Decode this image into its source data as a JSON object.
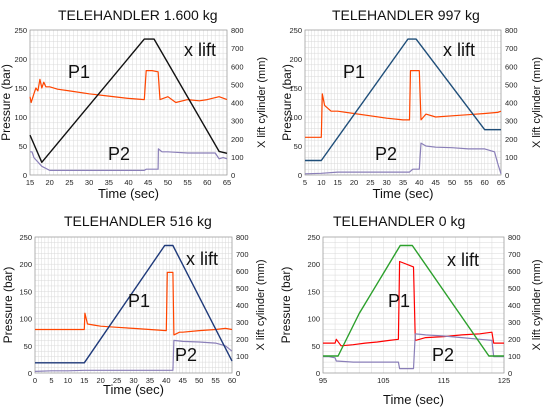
{
  "chart_data": [
    {
      "type": "line",
      "title": "TELEHANDLER 1.600 kg",
      "xlabel": "Time (sec)",
      "ylabel": "Pressure (bar)",
      "y2label": "X lift cylinder (mm)",
      "xlim": [
        15,
        65
      ],
      "ylim": [
        0,
        250
      ],
      "y2lim": [
        0,
        800
      ],
      "xticks": [
        15,
        20,
        25,
        30,
        35,
        40,
        45,
        50,
        55,
        60,
        65
      ],
      "yticks": [
        0,
        50,
        100,
        150,
        200,
        250
      ],
      "y2ticks": [
        0,
        100,
        200,
        300,
        400,
        500,
        600,
        700,
        800
      ],
      "grid": true,
      "annotations": [
        "P1",
        "P2",
        "x lift"
      ],
      "series": [
        {
          "axis": "left",
          "color": "#ff4500",
          "x": [
            15,
            15.3,
            16,
            16.5,
            17,
            17.5,
            18,
            18.5,
            19,
            20,
            22,
            25,
            30,
            35,
            40,
            44,
            44.5,
            46,
            47.5,
            48,
            50,
            52,
            55,
            58,
            60,
            63,
            65
          ],
          "y": [
            135,
            125,
            140,
            150,
            145,
            165,
            150,
            160,
            152,
            152,
            148,
            145,
            140,
            136,
            132,
            130,
            180,
            180,
            178,
            130,
            135,
            125,
            130,
            128,
            130,
            135,
            130
          ]
        },
        {
          "axis": "left",
          "color": "#8a7fb8",
          "x": [
            15,
            15.5,
            16,
            18,
            20,
            25,
            30,
            35,
            40,
            44,
            44.5,
            46,
            47.5,
            47.6,
            48.5,
            50,
            55,
            60,
            62,
            63,
            64,
            65
          ],
          "y": [
            40,
            40,
            30,
            15,
            8,
            8,
            8,
            8,
            8,
            8,
            10,
            10,
            10,
            45,
            40,
            40,
            38,
            38,
            38,
            28,
            30,
            28
          ]
        },
        {
          "axis": "right",
          "color": "#111111",
          "x": [
            15,
            18,
            44,
            46.5,
            63,
            65
          ],
          "y": [
            220,
            70,
            750,
            750,
            130,
            120
          ]
        }
      ]
    },
    {
      "type": "line",
      "title": "TELEHANDLER  997 kg",
      "xlabel": "Time (sec)",
      "ylabel": "Pressure (bar)",
      "y2label": "X lift cylinder (mm)",
      "xlim": [
        5,
        65
      ],
      "ylim": [
        0,
        250
      ],
      "y2lim": [
        0,
        800
      ],
      "xticks": [
        5,
        10,
        15,
        20,
        25,
        30,
        35,
        40,
        45,
        50,
        55,
        60,
        65
      ],
      "yticks": [
        0,
        50,
        100,
        150,
        200,
        250
      ],
      "y2ticks": [
        0,
        100,
        200,
        300,
        400,
        500,
        600,
        700,
        800
      ],
      "grid": true,
      "annotations": [
        "P1",
        "P2",
        "x lift"
      ],
      "series": [
        {
          "axis": "left",
          "color": "#ff4500",
          "x": [
            5,
            10,
            10.3,
            11,
            13,
            15,
            20,
            25,
            30,
            35,
            37,
            37.3,
            40,
            40.5,
            42,
            45,
            50,
            55,
            60,
            64,
            65
          ],
          "y": [
            65,
            65,
            140,
            120,
            110,
            110,
            106,
            102,
            98,
            95,
            95,
            180,
            180,
            95,
            105,
            100,
            102,
            104,
            106,
            108,
            110
          ]
        },
        {
          "axis": "left",
          "color": "#8a7fb8",
          "x": [
            5,
            10,
            15,
            20,
            25,
            30,
            37,
            38,
            40,
            40.5,
            42,
            45,
            50,
            55,
            60,
            63,
            64,
            65
          ],
          "y": [
            2,
            3,
            5,
            5,
            5,
            5,
            5,
            10,
            10,
            55,
            50,
            48,
            47,
            45,
            45,
            40,
            20,
            2
          ]
        },
        {
          "axis": "right",
          "color": "#1f4e79",
          "x": [
            5,
            10,
            36.5,
            39,
            60,
            65
          ],
          "y": [
            80,
            80,
            750,
            750,
            250,
            250
          ]
        }
      ]
    },
    {
      "type": "line",
      "title": "TELEHANDLER    516 kg",
      "xlabel": "Time (sec)",
      "ylabel": "Pressure (bar)",
      "y2label": "X lift cylinder (mm)",
      "xlim": [
        0,
        60
      ],
      "ylim": [
        0,
        250
      ],
      "y2lim": [
        0,
        800
      ],
      "xticks": [
        0,
        5,
        10,
        15,
        20,
        25,
        30,
        35,
        40,
        45,
        50,
        55,
        60
      ],
      "yticks": [
        0,
        50,
        100,
        150,
        200,
        250
      ],
      "y2ticks": [
        0,
        100,
        200,
        300,
        400,
        500,
        600,
        700,
        800
      ],
      "grid": true,
      "annotations": [
        "P1",
        "P2",
        "x lift"
      ],
      "series": [
        {
          "axis": "left",
          "color": "#ff4500",
          "x": [
            0,
            5,
            10,
            15,
            15.2,
            16,
            18,
            20,
            25,
            30,
            35,
            40,
            40.3,
            42,
            42.3,
            44,
            45,
            50,
            55,
            58,
            60
          ],
          "y": [
            80,
            80,
            80,
            80,
            110,
            90,
            88,
            86,
            84,
            82,
            80,
            78,
            185,
            185,
            70,
            75,
            75,
            78,
            80,
            82,
            80
          ]
        },
        {
          "axis": "left",
          "color": "#8a7fb8",
          "x": [
            0,
            5,
            10,
            15,
            20,
            25,
            30,
            35,
            40,
            42,
            42.3,
            45,
            50,
            55,
            58,
            60
          ],
          "y": [
            3,
            4,
            4,
            5,
            5,
            5,
            5,
            5,
            5,
            5,
            60,
            58,
            57,
            55,
            50,
            40
          ]
        },
        {
          "axis": "right",
          "color": "#1f3a7a",
          "x": [
            0,
            5,
            15,
            39.5,
            42,
            60
          ],
          "y": [
            60,
            60,
            60,
            750,
            750,
            70
          ]
        }
      ]
    },
    {
      "type": "line",
      "title": "TELEHANDLER      0 kg",
      "xlabel": "Time (sec)",
      "ylabel": "Pressure (bar)",
      "y2label": "X lift cylinder (mm)",
      "xlim": [
        95,
        125
      ],
      "ylim": [
        0,
        250
      ],
      "y2lim": [
        0,
        800
      ],
      "xticks": [
        95,
        105,
        115,
        125
      ],
      "yticks": [
        0,
        50,
        100,
        150,
        200,
        250
      ],
      "y2ticks": [
        0,
        100,
        200,
        300,
        400,
        500,
        600,
        700,
        800
      ],
      "grid": true,
      "annotations": [
        "P1",
        "P2",
        "x lift"
      ],
      "series": [
        {
          "axis": "left",
          "color": "#ff0000",
          "x": [
            95,
            96,
            97,
            97.2,
            98,
            100,
            102,
            104,
            106,
            107.5,
            107.7,
            110,
            110.3,
            111,
            112,
            115,
            118,
            121,
            123,
            123.3,
            125
          ],
          "y": [
            55,
            55,
            55,
            62,
            50,
            52,
            55,
            57,
            60,
            62,
            205,
            195,
            60,
            62,
            65,
            67,
            70,
            72,
            75,
            55,
            55
          ]
        },
        {
          "axis": "left",
          "color": "#8a7fb8",
          "x": [
            95,
            96,
            97,
            97.2,
            100,
            104,
            107.5,
            107.7,
            110,
            110.3,
            112,
            115,
            118,
            121,
            123,
            123.3,
            125
          ],
          "y": [
            30,
            30,
            28,
            22,
            20,
            20,
            20,
            8,
            8,
            72,
            70,
            68,
            65,
            62,
            60,
            30,
            30
          ]
        },
        {
          "axis": "right",
          "color": "#2ca02c",
          "x": [
            95,
            96,
            97.5,
            101,
            107.8,
            109.8,
            122.5,
            123.5,
            125
          ],
          "y": [
            100,
            100,
            100,
            350,
            750,
            750,
            100,
            100,
            100
          ]
        }
      ]
    }
  ]
}
